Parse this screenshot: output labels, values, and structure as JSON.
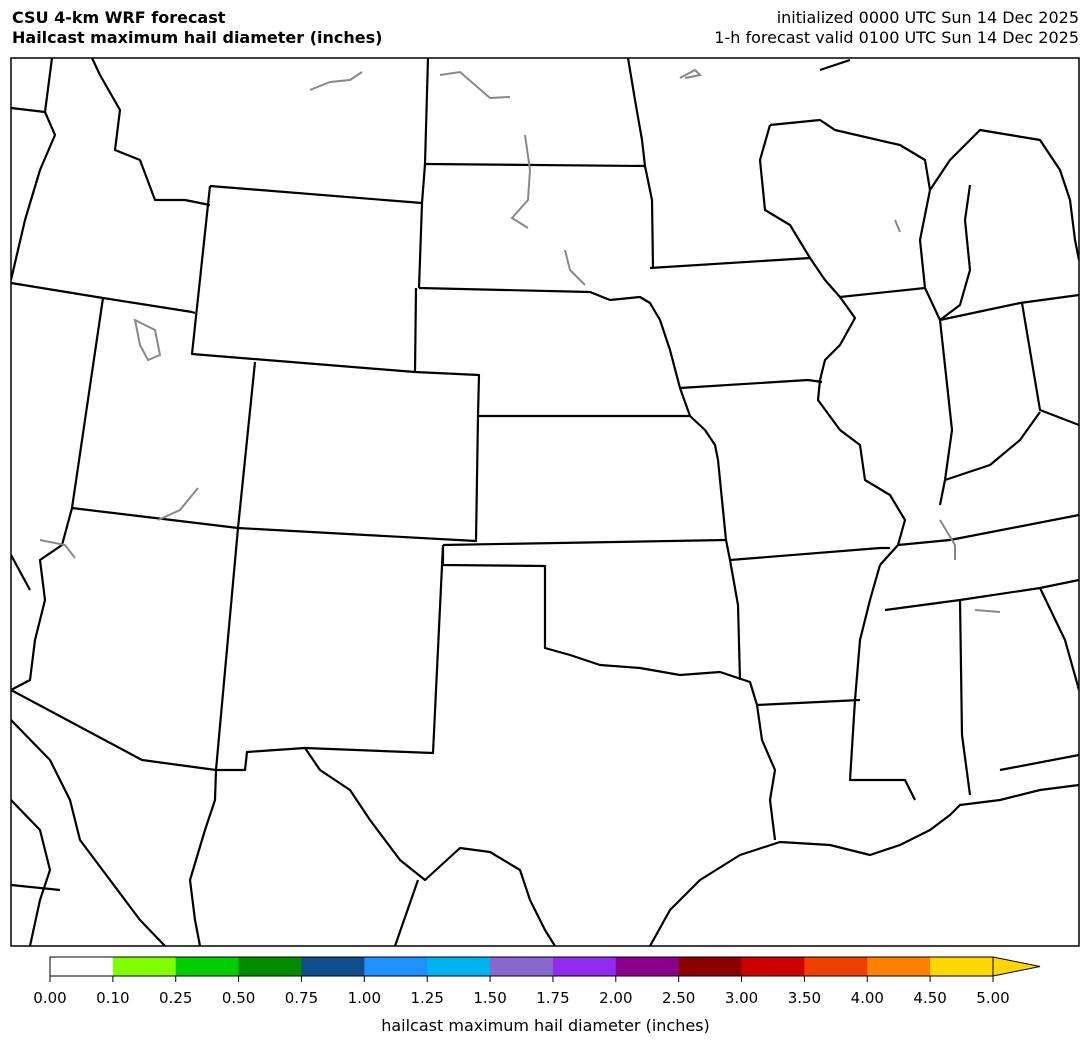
{
  "header": {
    "title_line1": "CSU 4-km WRF forecast",
    "title_line2": "Hailcast maximum hail diameter (inches)",
    "init_text": "initialized 0000 UTC Sun 14 Dec 2025",
    "valid_text": "1-h forecast valid 0100 UTC Sun 14 Dec 2025"
  },
  "colorbar": {
    "label": "hailcast maximum hail diameter (inches)",
    "ticks": [
      "0.00",
      "0.10",
      "0.25",
      "0.50",
      "0.75",
      "1.00",
      "1.25",
      "1.50",
      "1.75",
      "2.00",
      "2.50",
      "3.00",
      "3.50",
      "4.00",
      "4.50",
      "5.00"
    ],
    "colors": [
      "#ffffff",
      "#7fff00",
      "#00cd00",
      "#008b00",
      "#104e8b",
      "#1e90ff",
      "#00b2ee",
      "#8968cd",
      "#912cee",
      "#8b008b",
      "#8b0000",
      "#cd0000",
      "#ee4000",
      "#ff7f00",
      "#ffd700"
    ],
    "extend_color": "#ffd700",
    "extend": "max"
  },
  "map": {
    "field_values_shown": "none above 0.10"
  }
}
